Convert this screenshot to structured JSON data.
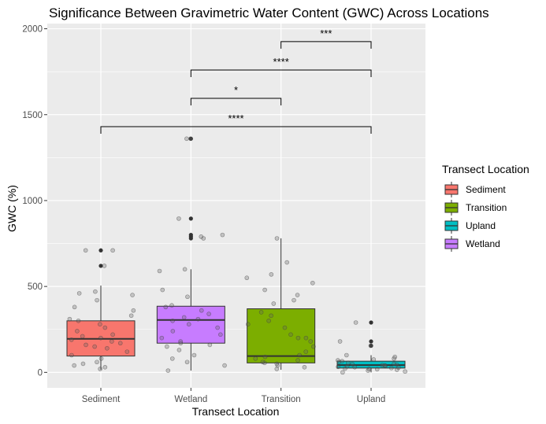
{
  "chart_data": {
    "type": "box",
    "title": "Significance Between Gravimetric Water Content (GWC) Across Locations",
    "xlabel": "Transect Location",
    "ylabel": "GWC (%)",
    "ylim": [
      -90,
      2030
    ],
    "yticks": [
      0,
      500,
      1000,
      1500,
      2000
    ],
    "grid": true,
    "legend": {
      "title": "Transect Location",
      "placement": "right",
      "entries": [
        "Sediment",
        "Transition",
        "Upland",
        "Wetland"
      ]
    },
    "categories": [
      "Sediment",
      "Wetland",
      "Transition",
      "Upland"
    ],
    "boxes": [
      {
        "name": "Sediment",
        "color": "#F8766D",
        "q1": 95,
        "median": 195,
        "q3": 300,
        "whisker_low": 15,
        "whisker_high": 505,
        "outliers": [
          620,
          710
        ],
        "points": [
          20,
          30,
          40,
          50,
          60,
          80,
          100,
          120,
          140,
          150,
          160,
          170,
          180,
          190,
          200,
          210,
          220,
          240,
          260,
          280,
          300,
          310,
          330,
          360,
          380,
          420,
          450,
          460,
          470,
          620,
          710,
          710
        ]
      },
      {
        "name": "Wetland",
        "color": "#C77CFF",
        "q1": 170,
        "median": 305,
        "q3": 385,
        "whisker_low": 10,
        "whisker_high": 600,
        "outliers": [
          780,
          790,
          800,
          895,
          1360
        ],
        "points": [
          10,
          40,
          60,
          80,
          100,
          130,
          150,
          160,
          170,
          180,
          200,
          220,
          240,
          260,
          280,
          300,
          310,
          320,
          340,
          360,
          380,
          390,
          440,
          480,
          590,
          600,
          780,
          790,
          800,
          895,
          1360,
          1360
        ]
      },
      {
        "name": "Transition",
        "color": "#7CAE00",
        "q1": 55,
        "median": 95,
        "q3": 370,
        "whisker_low": 15,
        "whisker_high": 780,
        "outliers": [],
        "points": [
          20,
          30,
          40,
          50,
          55,
          60,
          70,
          80,
          90,
          100,
          120,
          150,
          180,
          200,
          200,
          220,
          260,
          280,
          300,
          330,
          350,
          400,
          420,
          450,
          480,
          520,
          550,
          570,
          640,
          780
        ]
      },
      {
        "name": "Upland",
        "color": "#00BFC4",
        "q1": 25,
        "median": 42,
        "q3": 65,
        "whisker_low": 0,
        "whisker_high": 100,
        "outliers": [
          155,
          180,
          290
        ],
        "points": [
          0,
          5,
          10,
          15,
          18,
          20,
          22,
          25,
          28,
          30,
          32,
          35,
          38,
          40,
          42,
          45,
          48,
          50,
          55,
          60,
          65,
          70,
          75,
          80,
          90,
          100,
          155,
          180,
          290
        ]
      }
    ],
    "significance": [
      {
        "from": "Sediment",
        "to": "Upland",
        "y": 1430,
        "label": "****"
      },
      {
        "from": "Wetland",
        "to": "Transition",
        "y": 1595,
        "label": "*"
      },
      {
        "from": "Wetland",
        "to": "Upland",
        "y": 1760,
        "label": "****"
      },
      {
        "from": "Transition",
        "to": "Upland",
        "y": 1925,
        "label": "***"
      }
    ]
  }
}
